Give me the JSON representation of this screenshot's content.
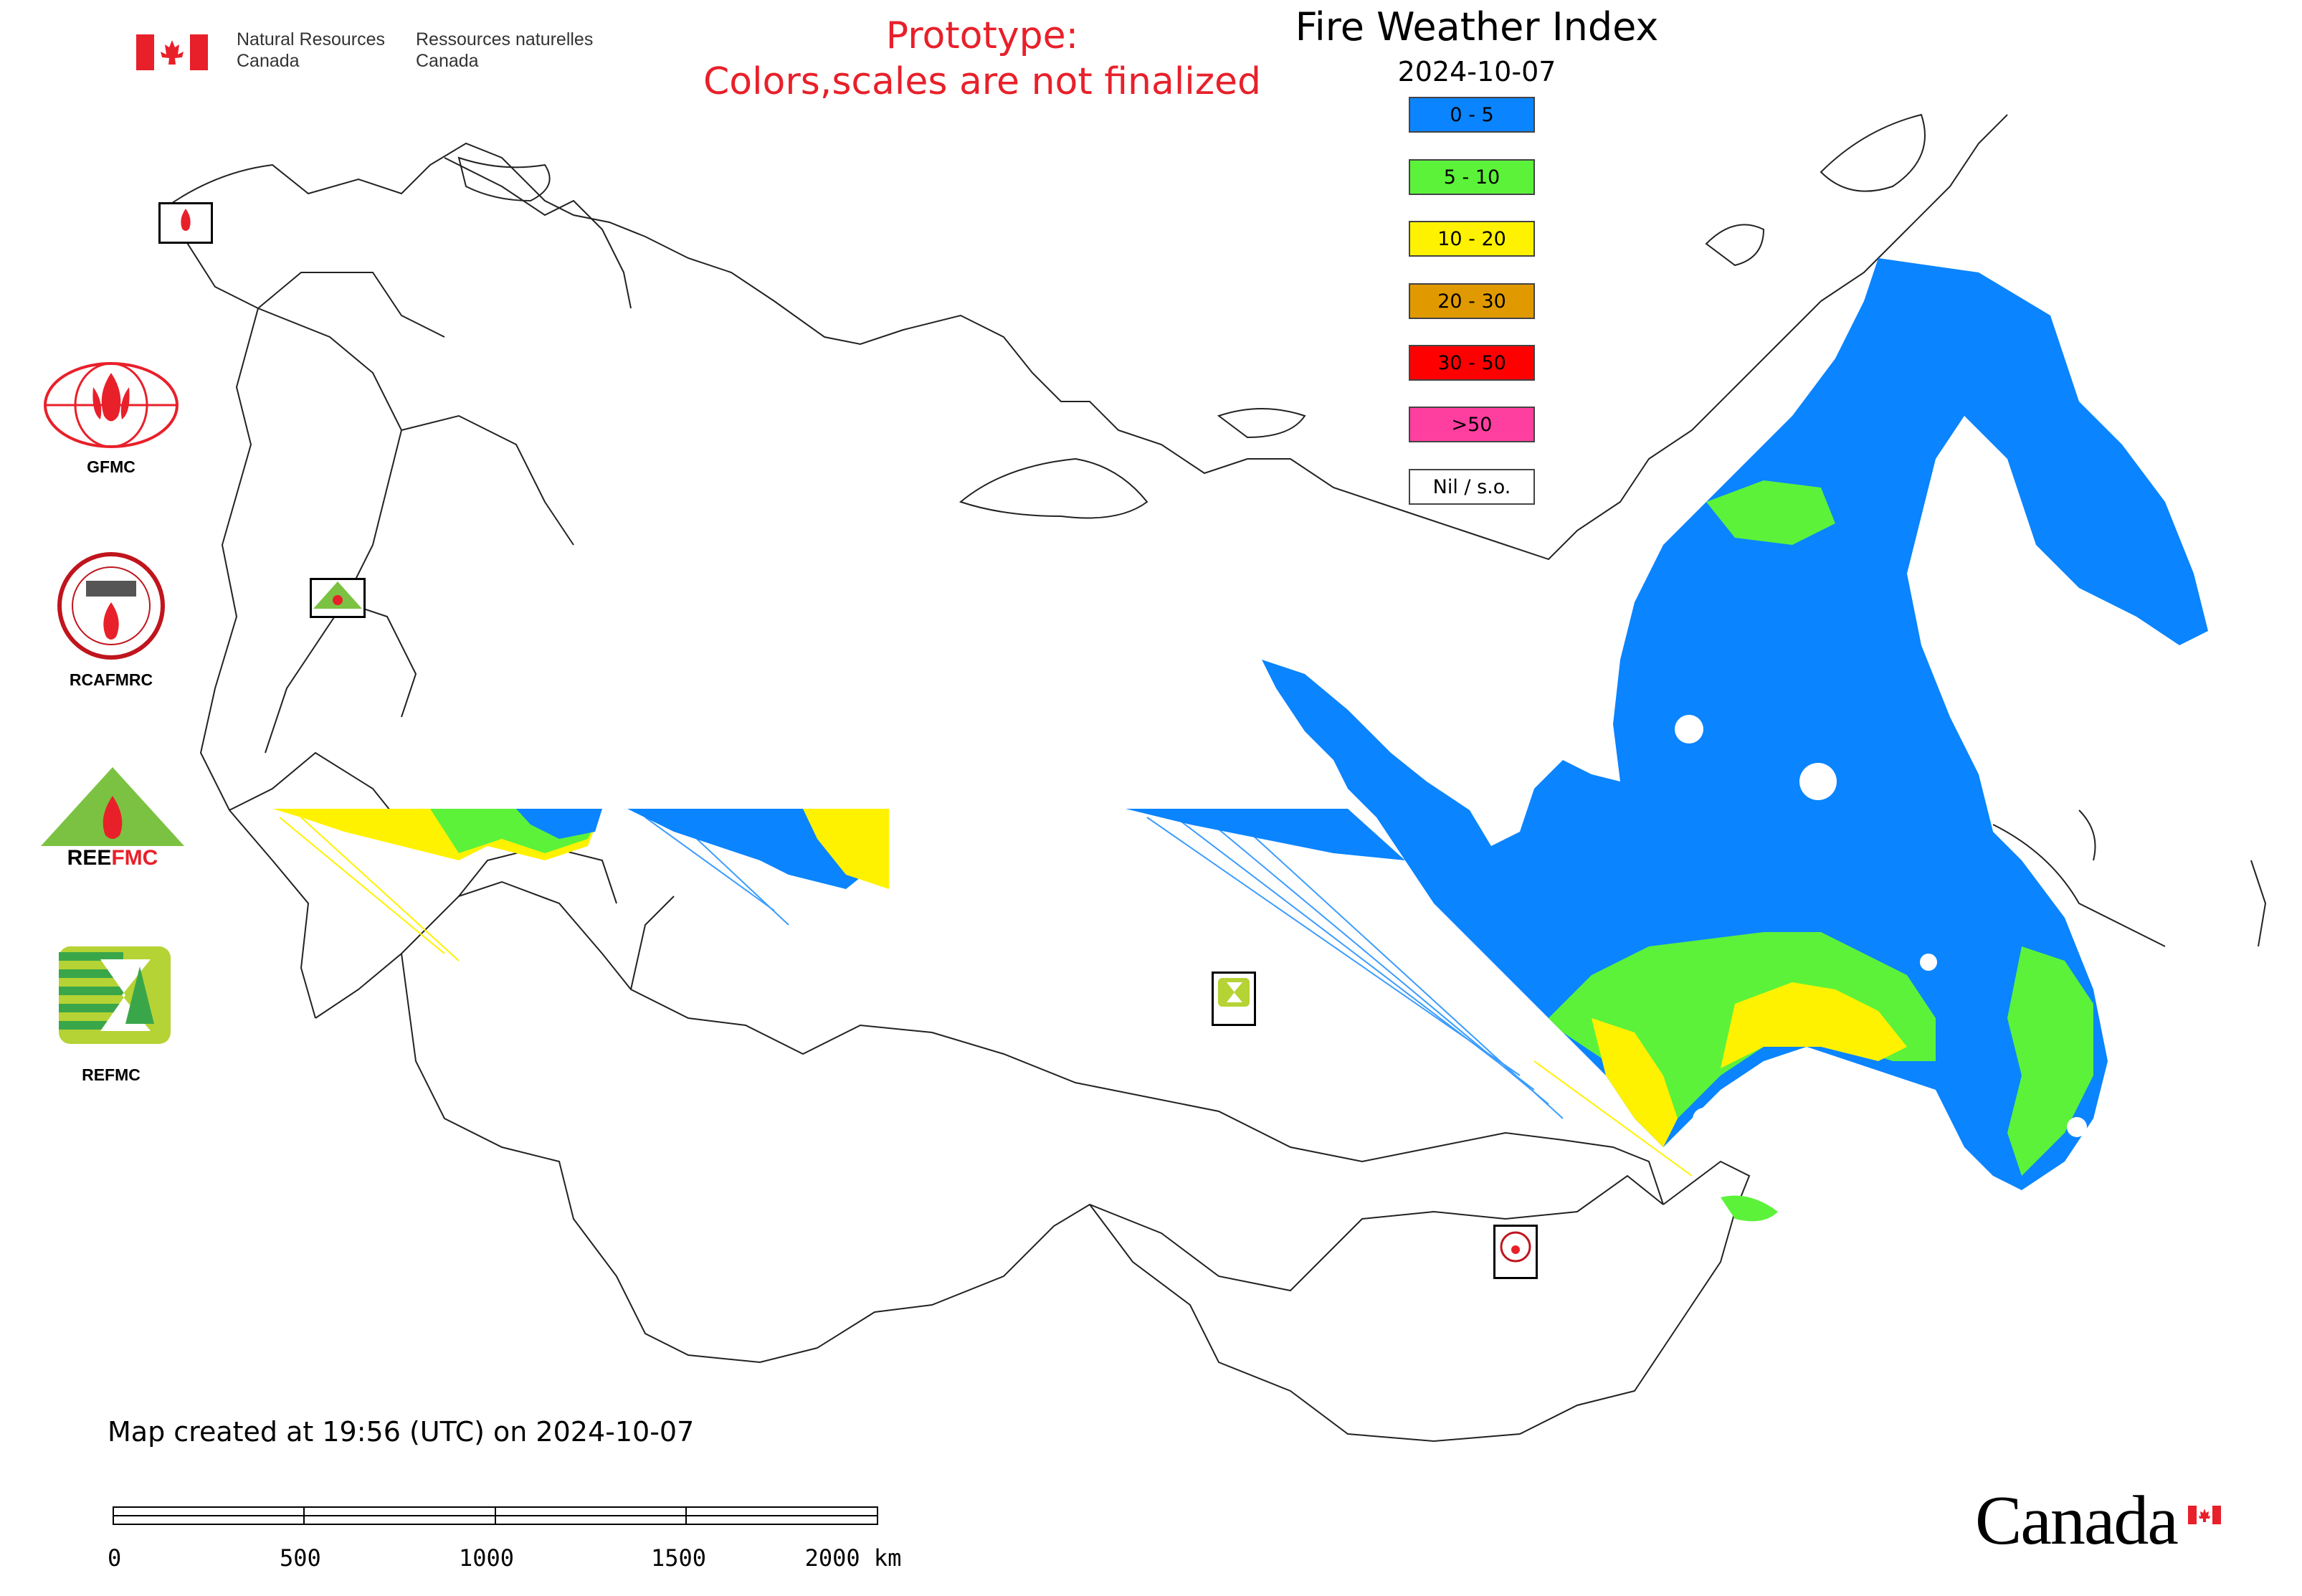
{
  "header": {
    "org_en": "Natural Resources\nCanada",
    "org_fr": "Ressources naturelles\nCanada",
    "prototype_line1": "Prototype:",
    "prototype_line2": "Colors,scales are not finalized"
  },
  "map": {
    "title": "Fire Weather Index",
    "date": "2024-10-07",
    "legend": [
      {
        "label": "0 - 5",
        "color": "#0a84ff"
      },
      {
        "label": "5 - 10",
        "color": "#5cf23a"
      },
      {
        "label": "10 - 20",
        "color": "#fff200"
      },
      {
        "label": "20 - 30",
        "color": "#e09a00"
      },
      {
        "label": "30 - 50",
        "color": "#ff0000"
      },
      {
        "label": ">50",
        "color": "#ff3fa0"
      },
      {
        "label": "Nil / s.o.",
        "color": "#ffffff"
      }
    ]
  },
  "partners": {
    "gfmc": "GFMC",
    "rcafmrc": "RCAFMRC",
    "reefmc": "REEFMC",
    "refmc": "REFMC"
  },
  "footer": {
    "created": "Map created at 19:56 (UTC) on 2024-10-07",
    "scale_labels": [
      "0",
      "500",
      "1000",
      "1500",
      "2000 km"
    ],
    "wordmark": "Canada"
  },
  "icons": [
    "canada-flag-icon",
    "fire-logo-icon",
    "maple-leaf-icon"
  ]
}
